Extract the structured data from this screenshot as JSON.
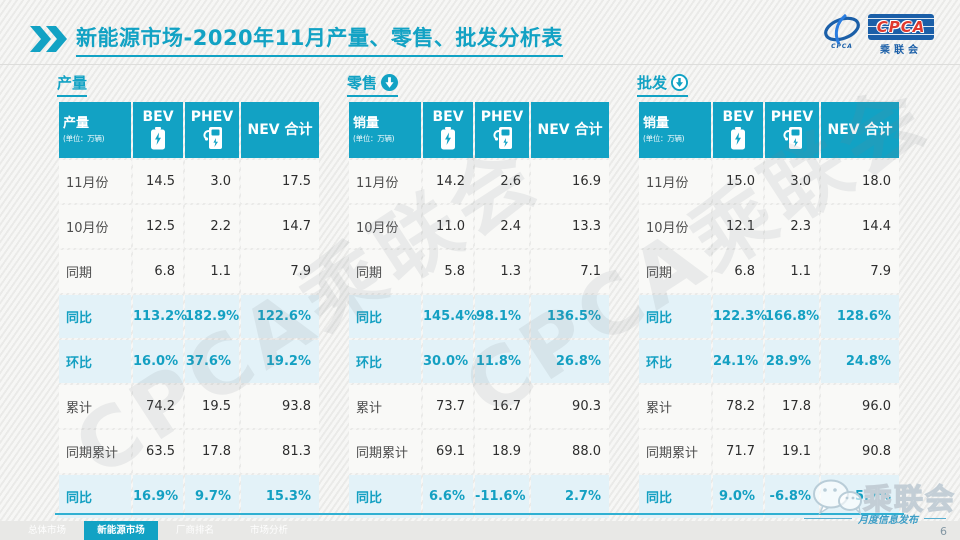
{
  "header": {
    "title_prefix": "新能源市场",
    "title_rest": "-2020年11月产量、零售、批发分析表",
    "logo": {
      "box_text": "CPCA",
      "box_sub": "乘联会",
      "emblem_text": "CPCA"
    }
  },
  "colors": {
    "accent_teal": "#12A2C4",
    "highlight_row_bg": "#E3F2F8",
    "logo_blue": "#1B5FA8",
    "logo_red": "#E0392E"
  },
  "tables": [
    {
      "section_title": "产量",
      "arrow_icon": "none",
      "col_header_label": "产量",
      "unit": "(单位：万辆)",
      "columns": [
        "BEV",
        "PHEV",
        "NEV 合计"
      ],
      "rows": [
        {
          "label": "11月份",
          "values": [
            "14.5",
            "3.0",
            "17.5"
          ],
          "highlight": false
        },
        {
          "label": "10月份",
          "values": [
            "12.5",
            "2.2",
            "14.7"
          ],
          "highlight": false
        },
        {
          "label": "同期",
          "values": [
            "6.8",
            "1.1",
            "7.9"
          ],
          "highlight": false
        },
        {
          "label": "同比",
          "values": [
            "113.2%",
            "182.9%",
            "122.6%"
          ],
          "highlight": true
        },
        {
          "label": "环比",
          "values": [
            "16.0%",
            "37.6%",
            "19.2%"
          ],
          "highlight": true
        },
        {
          "label": "累计",
          "values": [
            "74.2",
            "19.5",
            "93.8"
          ],
          "highlight": false
        },
        {
          "label": "同期累计",
          "values": [
            "63.5",
            "17.8",
            "81.3"
          ],
          "highlight": false
        },
        {
          "label": "同比",
          "values": [
            "16.9%",
            "9.7%",
            "15.3%"
          ],
          "highlight": true
        }
      ]
    },
    {
      "section_title": "零售",
      "arrow_icon": "down-filled",
      "col_header_label": "销量",
      "unit": "(单位：万辆)",
      "columns": [
        "BEV",
        "PHEV",
        "NEV 合计"
      ],
      "rows": [
        {
          "label": "11月份",
          "values": [
            "14.2",
            "2.6",
            "16.9"
          ],
          "highlight": false
        },
        {
          "label": "10月份",
          "values": [
            "11.0",
            "2.4",
            "13.3"
          ],
          "highlight": false
        },
        {
          "label": "同期",
          "values": [
            "5.8",
            "1.3",
            "7.1"
          ],
          "highlight": false
        },
        {
          "label": "同比",
          "values": [
            "145.4%",
            "98.1%",
            "136.5%"
          ],
          "highlight": true
        },
        {
          "label": "环比",
          "values": [
            "30.0%",
            "11.8%",
            "26.8%"
          ],
          "highlight": true
        },
        {
          "label": "累计",
          "values": [
            "73.7",
            "16.7",
            "90.3"
          ],
          "highlight": false
        },
        {
          "label": "同期累计",
          "values": [
            "69.1",
            "18.9",
            "88.0"
          ],
          "highlight": false
        },
        {
          "label": "同比",
          "values": [
            "6.6%",
            "-11.6%",
            "2.7%"
          ],
          "highlight": true
        }
      ]
    },
    {
      "section_title": "批发",
      "arrow_icon": "down-outline",
      "col_header_label": "销量",
      "unit": "(单位：万辆)",
      "columns": [
        "BEV",
        "PHEV",
        "NEV 合计"
      ],
      "rows": [
        {
          "label": "11月份",
          "values": [
            "15.0",
            "3.0",
            "18.0"
          ],
          "highlight": false
        },
        {
          "label": "10月份",
          "values": [
            "12.1",
            "2.3",
            "14.4"
          ],
          "highlight": false
        },
        {
          "label": "同期",
          "values": [
            "6.8",
            "1.1",
            "7.9"
          ],
          "highlight": false
        },
        {
          "label": "同比",
          "values": [
            "122.3%",
            "166.8%",
            "128.6%"
          ],
          "highlight": true
        },
        {
          "label": "环比",
          "values": [
            "24.1%",
            "28.9%",
            "24.8%"
          ],
          "highlight": true
        },
        {
          "label": "累计",
          "values": [
            "78.2",
            "17.8",
            "96.0"
          ],
          "highlight": false
        },
        {
          "label": "同期累计",
          "values": [
            "71.7",
            "19.1",
            "90.8"
          ],
          "highlight": false
        },
        {
          "label": "同比",
          "values": [
            "9.0%",
            "-6.8%",
            "5.7%"
          ],
          "highlight": true
        }
      ]
    }
  ],
  "watermark": {
    "diagonal_text": "CPCA乘联会",
    "brand_text": "乘联会",
    "publish_text": "月度信息发布"
  },
  "footer": {
    "tabs": [
      {
        "label": "总体市场",
        "active": false
      },
      {
        "label": "新能源市场",
        "active": true
      },
      {
        "label": "厂商排名",
        "active": false
      },
      {
        "label": "市场分析",
        "active": false
      }
    ],
    "page_number": "6"
  }
}
